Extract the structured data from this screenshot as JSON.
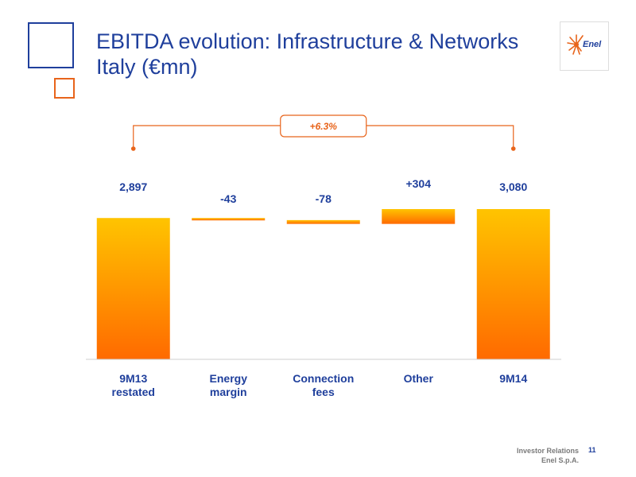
{
  "title_line1": "EBITDA evolution: Infrastructure & Networks",
  "title_line2": "Italy (€mn)",
  "logo_text": "Enel",
  "growth_label": "+6.3%",
  "footer": {
    "line1": "Investor Relations",
    "line2": "Enel S.p.A.",
    "page": "11"
  },
  "colors": {
    "accent": "#e8641b",
    "title": "#1f3f9c",
    "bar_top": "#ffc400",
    "bar_bottom": "#ff6a00"
  },
  "chart_data": {
    "type": "bar",
    "subtype": "waterfall",
    "categories": [
      [
        "9M13",
        "restated"
      ],
      [
        "Energy",
        "margin"
      ],
      [
        "Connection",
        "fees"
      ],
      [
        "Other"
      ],
      [
        "9M14"
      ]
    ],
    "values": [
      2897,
      -43,
      -78,
      304,
      3080
    ],
    "kinds": [
      "total",
      "delta",
      "delta",
      "delta",
      "total"
    ],
    "data_labels": [
      "2,897",
      "-43",
      "-78",
      "+304",
      "3,080"
    ],
    "baseline": 0
  }
}
